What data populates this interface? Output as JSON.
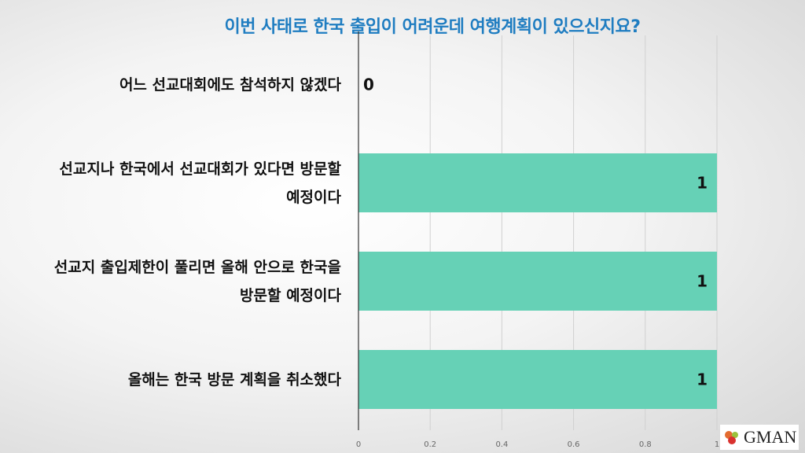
{
  "chart_data": {
    "type": "bar",
    "orientation": "horizontal",
    "title": "이번 사태로 한국 출입이 어려운데 여행계획이 있으신지요?",
    "categories": [
      "어느 선교대회에도 참석하지 않겠다",
      "선교지나 한국에서 선교대회가 있다면 방문할\n예정이다",
      "선교지 출입제한이 풀리면 올해 안으로 한국을\n방문할 예정이다",
      "올해는 한국 방문 계획을 취소했다"
    ],
    "values": [
      0,
      1,
      1,
      1
    ],
    "value_labels": [
      "0",
      "1",
      "1",
      "1"
    ],
    "xlim": [
      0,
      1
    ],
    "ticks": [
      "0",
      "0.2",
      "0.4",
      "0.6",
      "0.8",
      "1"
    ],
    "tick_values": [
      0,
      0.2,
      0.4,
      0.6,
      0.8,
      1
    ],
    "grid": true,
    "bar_color": "#66d1b6"
  },
  "logo": {
    "text": "GMAN"
  }
}
